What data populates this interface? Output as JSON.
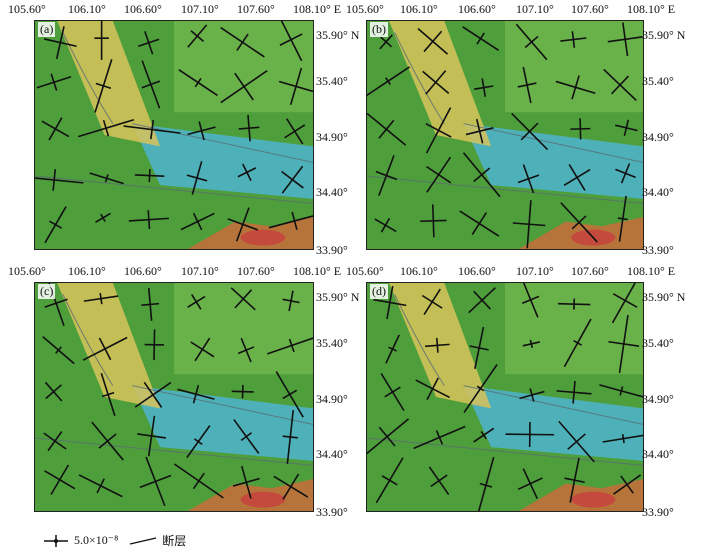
{
  "lon_ticks": [
    "105.60°",
    "106.10°",
    "106.60°",
    "107.10°",
    "107.60°",
    "108.10° E"
  ],
  "lat_ticks": [
    "35.90° N",
    "35.40°",
    "34.90°",
    "34.40°",
    "33.90°"
  ],
  "panels": [
    {
      "label": "(a)"
    },
    {
      "label": "(b)"
    },
    {
      "label": "(c)"
    },
    {
      "label": "(d)"
    }
  ],
  "legend": {
    "scale_text": "5.0×10⁻⁸",
    "fault_text": "断层"
  },
  "colors": {
    "low_blue": "#4fb3c8",
    "green": "#4e9e3b",
    "light_green": "#8cc75a",
    "yellow": "#d8c35a",
    "brown": "#b7743a",
    "red": "#c44a3d",
    "glyph": "#111111"
  },
  "icons": [
    "strain-cross-icon",
    "fault-line-icon"
  ]
}
